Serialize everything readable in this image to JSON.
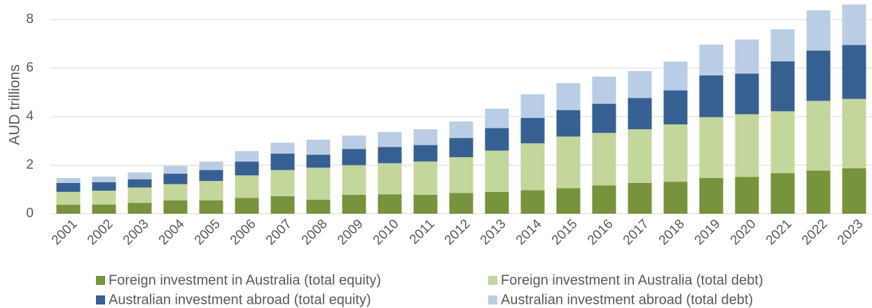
{
  "chart_data": {
    "type": "stacked_bar",
    "y_label": "AUD trillions",
    "categories": [
      "2001",
      "2002",
      "2003",
      "2004",
      "2005",
      "2006",
      "2007",
      "2008",
      "2009",
      "2010",
      "2011",
      "2012",
      "2013",
      "2014",
      "2015",
      "2016",
      "2017",
      "2018",
      "2019",
      "2020",
      "2021",
      "2022",
      "2023"
    ],
    "series": [
      {
        "name": "Foreign investment in Australia (total equity)",
        "color": "#77933c",
        "values": [
          0.37,
          0.38,
          0.45,
          0.55,
          0.55,
          0.65,
          0.72,
          0.58,
          0.78,
          0.8,
          0.78,
          0.85,
          0.9,
          0.97,
          1.05,
          1.17,
          1.27,
          1.32,
          1.47,
          1.52,
          1.67,
          1.78,
          1.87
        ]
      },
      {
        "name": "Foreign investment in Australia (total debt)",
        "color": "#c3d69b",
        "values": [
          0.53,
          0.57,
          0.63,
          0.67,
          0.8,
          0.93,
          1.08,
          1.32,
          1.22,
          1.28,
          1.37,
          1.48,
          1.7,
          1.93,
          2.13,
          2.16,
          2.21,
          2.36,
          2.51,
          2.58,
          2.55,
          2.87,
          2.86
        ]
      },
      {
        "name": "Australian investment abroad (total equity)",
        "color": "#366092",
        "values": [
          0.37,
          0.35,
          0.34,
          0.43,
          0.45,
          0.57,
          0.68,
          0.53,
          0.67,
          0.67,
          0.68,
          0.79,
          0.93,
          1.05,
          1.09,
          1.2,
          1.29,
          1.4,
          1.72,
          1.67,
          2.06,
          2.07,
          2.22
        ]
      },
      {
        "name": "Australian investment abroad (total debt)",
        "color": "#b9cde5",
        "values": [
          0.2,
          0.23,
          0.28,
          0.32,
          0.35,
          0.43,
          0.45,
          0.62,
          0.55,
          0.62,
          0.65,
          0.68,
          0.8,
          0.97,
          1.11,
          1.12,
          1.11,
          1.19,
          1.27,
          1.41,
          1.32,
          1.66,
          1.67
        ]
      }
    ],
    "ylim": [
      0,
      8.8
    ],
    "yticks": [
      0,
      2,
      4,
      6,
      8
    ],
    "grid": true,
    "legend": "bottom"
  }
}
